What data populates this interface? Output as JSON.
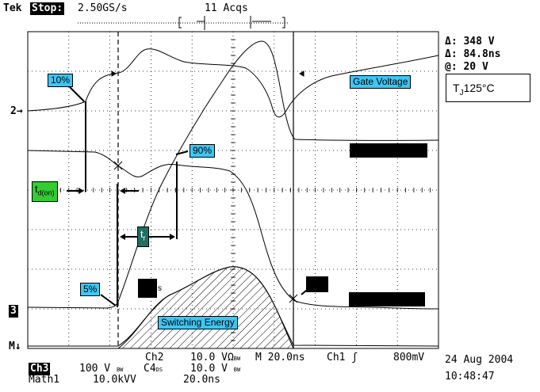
{
  "header": {
    "brand": "Tek",
    "run_state": "Stop:",
    "sample_rate": "2.50GS/s",
    "acquisitions": "11 Acqs"
  },
  "measurements": {
    "delta_v": "Δ: 348 V",
    "delta_t": "Δ: 84.8ns",
    "at_v": "@: 20 V"
  },
  "annotations": {
    "pct10": "10%",
    "pct90": "90%",
    "pct5": "5%",
    "td_on_main": "t",
    "td_on_sub": "d(on)",
    "tr_main": "t",
    "tr_sub": "r",
    "gate_voltage": "Gate Voltage",
    "tj_main": "T",
    "tj_sub": "J",
    "tj_value": "125°C",
    "switching_energy": "Switching Energy",
    "small_mark": "s"
  },
  "markers": {
    "ch2": "2",
    "ch3": "3",
    "math": "M"
  },
  "readout": {
    "ch3_label": "Ch3",
    "ch3_scale": "100 V",
    "bw1": "BW",
    "ch2_label": "Ch2",
    "ch2_scale": "10.0 V",
    "omega": "Ω",
    "bw2": "BW",
    "c4_label": "C4",
    "c4_sub": "DS",
    "c4_scale": "10.0 V",
    "bw3": "BW",
    "timebase": "M 20.0ns",
    "trigger": "Ch1",
    "trigger_slope": "ʃ",
    "trigger_level": "800mV",
    "math_label": "Math1",
    "math_scale": "10.0kVV",
    "math_time": "20.0ns"
  },
  "datetime": {
    "date": "24 Aug 2004",
    "time": "10:48:47"
  }
}
